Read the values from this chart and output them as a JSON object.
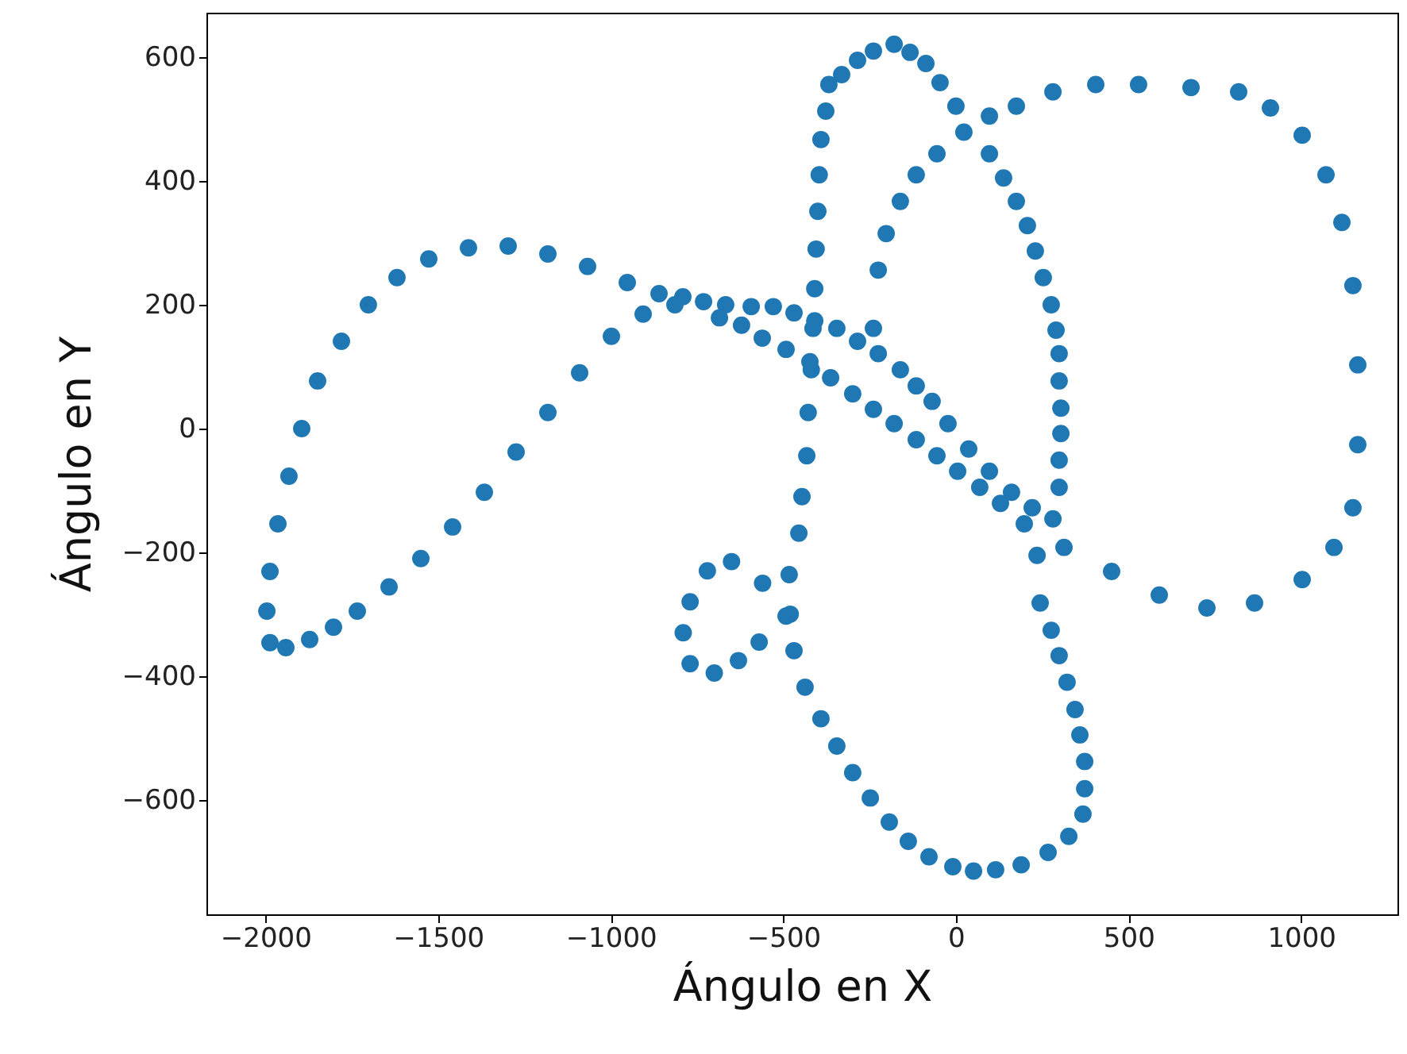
{
  "chart_data": {
    "type": "scatter",
    "xlabel": "Ángulo en X",
    "ylabel": "Ángulo en Y",
    "marker": "circle",
    "grid": false,
    "xlim": [
      -2171,
      1279
    ],
    "ylim": [
      -785,
      672
    ],
    "xticks": [
      -2000,
      -1500,
      -1000,
      -500,
      0,
      500,
      1000
    ],
    "yticks": [
      -600,
      -400,
      -200,
      0,
      200,
      400,
      600
    ],
    "series": [
      {
        "color": "#1f77b4",
        "x": [
          -480,
          -560,
          -650,
          -720,
          -770,
          -790,
          -770,
          -700,
          -630,
          -570,
          -377,
          -391,
          -396,
          -400,
          -405,
          -409,
          -414,
          -419,
          -428,
          -432,
          -446,
          -455,
          -483,
          -492,
          -469,
          -437,
          -391,
          -345,
          -299,
          -248,
          -193,
          -138,
          -78,
          -9,
          -368,
          -331,
          -285,
          -239,
          -179,
          -133,
          -87,
          -46,
          0,
          97,
          138,
          175,
          207,
          230,
          253,
          276,
          290,
          299,
          299,
          304,
          304,
          299,
          299,
          281,
          235,
          244,
          276,
          299,
          322,
          345,
          359,
          373,
          373,
          368,
          327,
          267,
          189,
          115,
          51,
          -239,
          -225,
          -202,
          -161,
          -115,
          -55,
          23,
          97,
          175,
          281,
          405,
          529,
          681,
          819,
          911,
          1003,
          1072,
          1118,
          1150,
          1164,
          1164,
          1150,
          1095,
          1003,
          865,
          727,
          589,
          451,
          313,
          198,
          -791,
          -731,
          -667,
          -593,
          -529,
          -469,
          -409,
          -345,
          -285,
          -225,
          -161,
          -115,
          -69,
          -23,
          37,
          97,
          161,
          221,
          -685,
          -621,
          -561,
          -492,
          -423,
          -363,
          -299,
          -239,
          -179,
          -115,
          -55,
          5,
          69,
          129,
          -860,
          -952,
          -1067,
          -1182,
          -1297,
          -1412,
          -1527,
          -1619,
          -1702,
          -1780,
          -1849,
          -1895,
          -1932,
          -1964,
          -1987,
          -1996,
          -1987,
          -1941,
          -1872,
          -1803,
          -1734,
          -1642,
          -1550,
          -1458,
          -1366,
          -1274,
          -1182,
          -1090,
          -998,
          -906,
          -814
        ],
        "values": [
          -300,
          -250,
          -215,
          -230,
          -280,
          -330,
          -380,
          -395,
          -375,
          -345,
          513,
          467,
          410,
          351,
          290,
          226,
          162,
          95,
          26,
          -44,
          -110,
          -169,
          -236,
          -303,
          -359,
          -418,
          -469,
          -513,
          -556,
          -597,
          -636,
          -667,
          -692,
          -708,
          556,
          572,
          595,
          610,
          621,
          608,
          590,
          559,
          521,
          444,
          405,
          367,
          328,
          287,
          244,
          200,
          159,
          121,
          77,
          33,
          -8,
          -51,
          -95,
          -146,
          -205,
          -282,
          -326,
          -367,
          -410,
          -454,
          -495,
          -538,
          -582,
          -623,
          -659,
          -685,
          -705,
          -713,
          -715,
          162,
          256,
          315,
          367,
          410,
          444,
          479,
          505,
          521,
          544,
          556,
          556,
          551,
          544,
          518,
          474,
          410,
          333,
          231,
          103,
          -26,
          -128,
          -192,
          -244,
          -282,
          -290,
          -269,
          -231,
          -192,
          -154,
          213,
          205,
          200,
          197,
          197,
          187,
          174,
          162,
          141,
          121,
          95,
          69,
          44,
          8,
          -33,
          -69,
          -103,
          -128,
          179,
          167,
          146,
          128,
          108,
          82,
          56,
          31,
          8,
          -18,
          -44,
          -69,
          -95,
          -121,
          218,
          236,
          262,
          282,
          295,
          292,
          274,
          244,
          200,
          141,
          77,
          0,
          -77,
          -154,
          -231,
          -295,
          -346,
          -354,
          -341,
          -321,
          -295,
          -256,
          -210,
          -159,
          -103,
          -38,
          26,
          90,
          149,
          185,
          200
        ]
      }
    ]
  }
}
